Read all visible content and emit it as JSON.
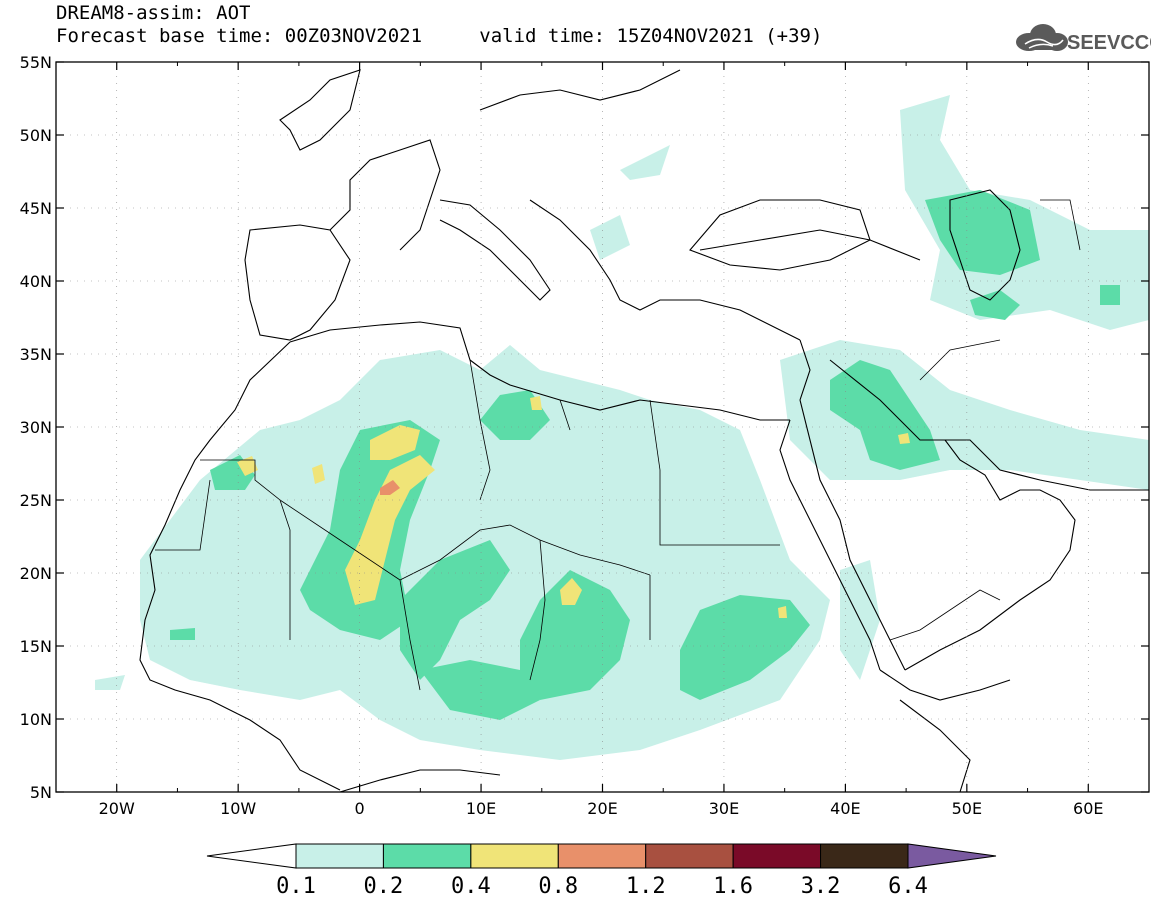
{
  "header": {
    "title": "DREAM8-assim: AOT",
    "base_time_label": "Forecast base time: 00Z03NOV2021",
    "valid_time_label": "valid time: 15Z04NOV2021 (+39)"
  },
  "logo": {
    "text": "SEEVCCC",
    "icon": "cloud-icon"
  },
  "map": {
    "lat_labels": [
      "55N",
      "50N",
      "45N",
      "40N",
      "35N",
      "30N",
      "25N",
      "20N",
      "15N",
      "10N",
      "5N"
    ],
    "lon_labels": [
      "20W",
      "10W",
      "0",
      "10E",
      "20E",
      "30E",
      "40E",
      "50E",
      "60E"
    ],
    "extent": {
      "lon": [
        -25,
        65
      ],
      "lat": [
        5,
        55
      ]
    }
  },
  "legend": {
    "levels": [
      "0.1",
      "0.2",
      "0.4",
      "0.8",
      "1.2",
      "1.6",
      "3.2",
      "6.4"
    ],
    "colors": [
      "#ffffff",
      "#c8f0e8",
      "#5cdca8",
      "#f0e478",
      "#e8906a",
      "#a85040",
      "#7a0a28",
      "#3a2818",
      "#7a5aa0"
    ]
  }
}
